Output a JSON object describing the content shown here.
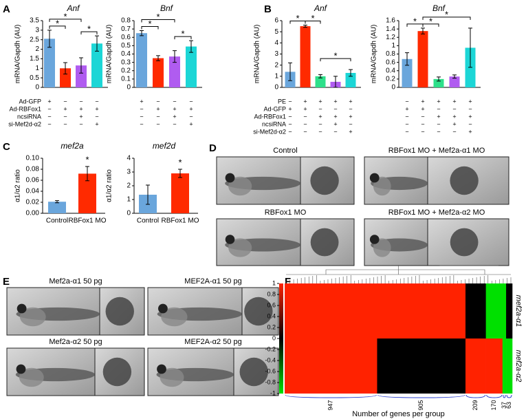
{
  "figure": {
    "panel_labels": [
      "A",
      "B",
      "C",
      "D",
      "E",
      "F"
    ],
    "images": [
      {
        "caption": "Control"
      },
      {
        "caption": "RBFox1 MO + Mef2a-α1 MO"
      },
      {
        "caption": "RBFox1 MO"
      },
      {
        "caption": "RBFox1 MO + Mef2a-α2 MO"
      },
      {
        "caption": "Mef2a-α1 50 pg"
      },
      {
        "caption": "MEF2A-α1 50 pg"
      },
      {
        "caption": "Mef2a-α2 50 pg"
      },
      {
        "caption": "MEF2A-α2 50 pg"
      }
    ]
  },
  "chart_data": [
    {
      "type": "bar",
      "title": "Anf",
      "y_label": "mRNA/Gapdh (AU)",
      "ylim": [
        0,
        3.5
      ],
      "yticks": [
        0,
        0.5,
        1,
        1.5,
        2,
        2.5,
        3,
        3.5
      ],
      "values": [
        2.55,
        1.0,
        1.15,
        2.3
      ],
      "errors": [
        0.45,
        0.3,
        0.4,
        0.4
      ],
      "colors": [
        "#6aa6dc",
        "#ff2a00",
        "#b05cf0",
        "#1cd6d6"
      ],
      "conditions": [
        {
          "name": "Ad-GFP",
          "signs": [
            "+",
            "−",
            "−",
            "−"
          ]
        },
        {
          "name": "Ad-RBFox1",
          "signs": [
            "−",
            "+",
            "+",
            "+"
          ]
        },
        {
          "name": "ncsiRNA",
          "signs": [
            "−",
            "−",
            "+",
            "−"
          ]
        },
        {
          "name": "si-Mef2d-α2",
          "signs": [
            "−",
            "−",
            "−",
            "+"
          ]
        }
      ],
      "significance": [
        {
          "label": "*",
          "bars": [
            0,
            1
          ]
        },
        {
          "label": "*",
          "bars": [
            0,
            2
          ]
        },
        {
          "label": "*",
          "bars": [
            2,
            3
          ]
        }
      ]
    },
    {
      "type": "bar",
      "title": "Bnf",
      "y_label": "mRNA/Gapdh (AU)",
      "ylim": [
        0,
        0.8
      ],
      "yticks": [
        0,
        0.1,
        0.2,
        0.3,
        0.4,
        0.5,
        0.6,
        0.7,
        0.8
      ],
      "values": [
        0.65,
        0.35,
        0.37,
        0.49
      ],
      "errors": [
        0.03,
        0.03,
        0.07,
        0.07
      ],
      "colors": [
        "#6aa6dc",
        "#ff2a00",
        "#b05cf0",
        "#1cd6d6"
      ],
      "conditions": [
        {
          "signs": [
            "+",
            "−",
            "−",
            "−"
          ]
        },
        {
          "signs": [
            "−",
            "+",
            "+",
            "+"
          ]
        },
        {
          "signs": [
            "−",
            "−",
            "+",
            "−"
          ]
        },
        {
          "signs": [
            "−",
            "−",
            "−",
            "+"
          ]
        }
      ],
      "significance": [
        {
          "label": "*",
          "bars": [
            0,
            1
          ]
        },
        {
          "label": "*",
          "bars": [
            0,
            2
          ]
        },
        {
          "label": "*",
          "bars": [
            2,
            3
          ]
        }
      ]
    },
    {
      "type": "bar",
      "title": "Anf",
      "y_label": "mRNA/Gapdh (AU)",
      "ylim": [
        0,
        6
      ],
      "yticks": [
        0,
        1,
        2,
        3,
        4,
        5,
        6
      ],
      "values": [
        1.4,
        5.5,
        1.0,
        0.5,
        1.3
      ],
      "errors": [
        0.8,
        0.1,
        0.15,
        0.5,
        0.3
      ],
      "colors": [
        "#6aa6dc",
        "#ff2a00",
        "#2ee08a",
        "#b05cf0",
        "#1cd6d6"
      ],
      "conditions": [
        {
          "name": "PE",
          "signs": [
            "−",
            "+",
            "+",
            "+",
            "+"
          ]
        },
        {
          "name": "Ad-GFP",
          "signs": [
            "+",
            "+",
            "−",
            "−",
            "−"
          ]
        },
        {
          "name": "Ad-RBFox1",
          "signs": [
            "−",
            "−",
            "+",
            "+",
            "+"
          ]
        },
        {
          "name": "ncsiRNA",
          "signs": [
            "−",
            "−",
            "−",
            "+",
            "−"
          ]
        },
        {
          "name": "si-Mef2d-α2",
          "signs": [
            "−",
            "−",
            "−",
            "−",
            "+"
          ]
        }
      ],
      "significance": [
        {
          "label": "*",
          "bars": [
            0,
            1
          ]
        },
        {
          "label": "*",
          "bars": [
            1,
            2
          ]
        },
        {
          "label": "*",
          "bars": [
            2,
            4
          ]
        }
      ]
    },
    {
      "type": "bar",
      "title": "Bnf",
      "y_label": "mRNA/Gapdh (AU)",
      "ylim": [
        0,
        1.6
      ],
      "yticks": [
        0,
        0.2,
        0.4,
        0.6,
        0.8,
        1,
        1.2,
        1.4,
        1.6
      ],
      "values": [
        0.68,
        1.35,
        0.2,
        0.26,
        0.95
      ],
      "errors": [
        0.15,
        0.07,
        0.05,
        0.04,
        0.47
      ],
      "colors": [
        "#6aa6dc",
        "#ff2a00",
        "#2ee08a",
        "#b05cf0",
        "#1cd6d6"
      ],
      "conditions": [
        {
          "signs": [
            "−",
            "+",
            "+",
            "+",
            "+"
          ]
        },
        {
          "signs": [
            "+",
            "+",
            "−",
            "−",
            "−"
          ]
        },
        {
          "signs": [
            "−",
            "−",
            "+",
            "+",
            "+"
          ]
        },
        {
          "signs": [
            "−",
            "−",
            "−",
            "+",
            "−"
          ]
        },
        {
          "signs": [
            "−",
            "−",
            "−",
            "−",
            "+"
          ]
        }
      ],
      "significance": [
        {
          "label": "*",
          "bars": [
            0,
            1
          ]
        },
        {
          "label": "*",
          "bars": [
            1,
            2
          ]
        },
        {
          "label": "*",
          "bars": [
            1,
            4
          ]
        }
      ]
    },
    {
      "type": "bar",
      "title": "mef2a",
      "y_label": "α1/α2 ratio",
      "ylim": [
        0,
        0.1
      ],
      "yticks": [
        {
          "value": 0,
          "label": "0.00"
        },
        {
          "value": 0.02,
          "label": "0.02"
        },
        {
          "value": 0.04,
          "label": "0.04"
        },
        {
          "value": 0.06,
          "label": "0.06"
        },
        {
          "value": 0.08,
          "label": "0.08"
        },
        {
          "value": 0.1,
          "label": "0.10"
        }
      ],
      "categories": [
        "Control",
        "RBFox1 MO"
      ],
      "values": [
        0.021,
        0.072
      ],
      "errors": [
        0.002,
        0.013
      ],
      "colors": [
        "#6aa6dc",
        "#ff2a00"
      ],
      "significance": [
        {
          "label": "*",
          "bars": [
            1,
            1
          ]
        }
      ]
    },
    {
      "type": "bar",
      "title": "mef2d",
      "y_label": "α1/α2 ratio",
      "ylim": [
        0,
        4
      ],
      "yticks": [
        0,
        1,
        2,
        3,
        4
      ],
      "categories": [
        "Control",
        "RBFox1 MO"
      ],
      "values": [
        1.35,
        2.9
      ],
      "errors": [
        0.7,
        0.3
      ],
      "colors": [
        "#6aa6dc",
        "#ff2a00"
      ],
      "significance": [
        {
          "label": "*",
          "bars": [
            1,
            1
          ]
        }
      ]
    },
    {
      "type": "heatmap",
      "x_label": "Number of genes per group",
      "row_labels": [
        "mef2a-α1",
        "mef2a-α2"
      ],
      "group_sizes": [
        947,
        905,
        209,
        170,
        37,
        63
      ],
      "matrix": [
        [
          1,
          1,
          0,
          -1,
          -1,
          0
        ],
        [
          1,
          0,
          1,
          1,
          -1,
          -1
        ]
      ],
      "clim": [
        -1,
        1
      ],
      "cticks": [
        1,
        0.8,
        0.6,
        0.4,
        0.2,
        0,
        -0.2,
        -0.4,
        -0.6,
        -0.8,
        -1
      ],
      "colormap": [
        "#00e000",
        "#000000",
        "#ff2200"
      ]
    }
  ]
}
